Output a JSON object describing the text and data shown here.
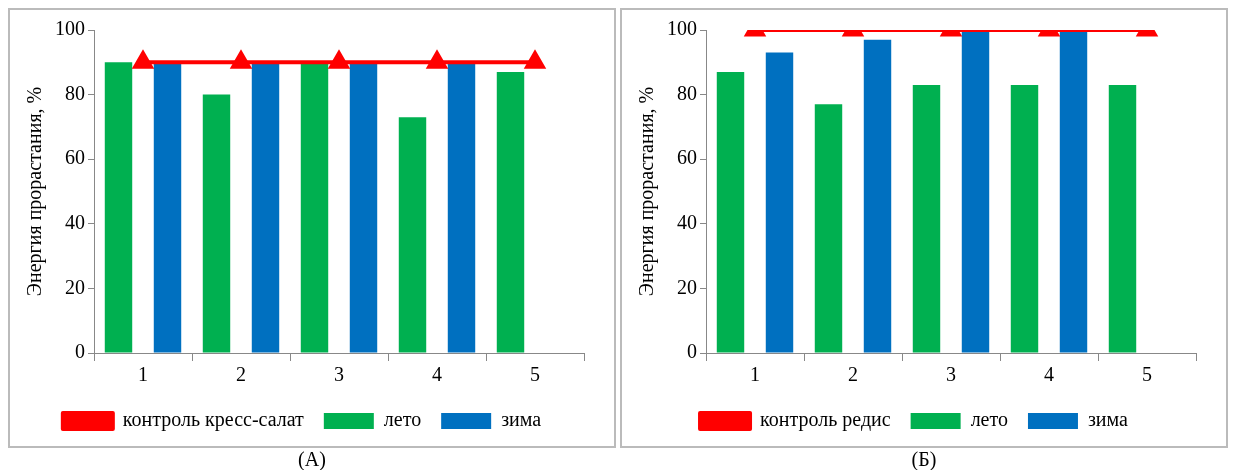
{
  "chart_data": [
    {
      "type": "bar",
      "ylabel": "Энергия прорастания, %",
      "categories": [
        "1",
        "2",
        "3",
        "4",
        "5"
      ],
      "ylim": [
        0,
        100
      ],
      "yticks": [
        0,
        20,
        40,
        60,
        80,
        100
      ],
      "grid": false,
      "legend": "bottom",
      "annotations": [
        "(А)"
      ],
      "series": [
        {
          "name": "лето",
          "color": "#00b050",
          "values": [
            90,
            80,
            90,
            73,
            87
          ]
        },
        {
          "name": "зима",
          "color": "#0070c0",
          "values": [
            90,
            90,
            90,
            90,
            null
          ]
        },
        {
          "name": "контроль кресс-салат",
          "type": "line",
          "color": "#ff0000",
          "marker": "triangle",
          "values": [
            90,
            90,
            90,
            90,
            90
          ]
        }
      ]
    },
    {
      "type": "bar",
      "ylabel": "Энергия прорастания, %",
      "categories": [
        "1",
        "2",
        "3",
        "4",
        "5"
      ],
      "ylim": [
        0,
        100
      ],
      "yticks": [
        0,
        20,
        40,
        60,
        80,
        100
      ],
      "grid": false,
      "legend": "bottom",
      "annotations": [
        "(Б)"
      ],
      "series": [
        {
          "name": "лето",
          "color": "#00b050",
          "values": [
            87,
            77,
            83,
            83,
            83
          ]
        },
        {
          "name": "зима",
          "color": "#0070c0",
          "values": [
            93,
            97,
            100,
            100,
            null
          ]
        },
        {
          "name": "контроль редис",
          "type": "line",
          "color": "#ff0000",
          "marker": "triangle",
          "values": [
            100,
            100,
            100,
            100,
            100
          ]
        }
      ]
    }
  ]
}
